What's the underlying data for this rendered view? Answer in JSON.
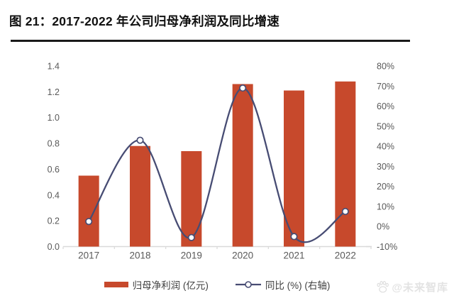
{
  "header": {
    "title": "图 21：2017-2022 年公司归母净利润及同比增速"
  },
  "chart_data": {
    "type": "bar",
    "subtype": "bar+line dual axis",
    "categories": [
      "2017",
      "2018",
      "2019",
      "2020",
      "2021",
      "2022"
    ],
    "series": [
      {
        "name": "归母净利润 (亿元)",
        "type": "bar",
        "axis": "left",
        "values": [
          0.55,
          0.78,
          0.74,
          1.26,
          1.21,
          1.28
        ]
      },
      {
        "name": "同比 (%) (右轴)",
        "type": "line",
        "axis": "right",
        "values": [
          2.5,
          43,
          -5.5,
          69,
          -5,
          7.5
        ]
      }
    ],
    "left_axis": {
      "min": 0.0,
      "max": 1.4,
      "step": 0.2,
      "tick_labels": [
        "0.0",
        "0.2",
        "0.4",
        "0.6",
        "0.8",
        "1.0",
        "1.2",
        "1.4"
      ]
    },
    "right_axis": {
      "min": -10,
      "max": 80,
      "step": 10,
      "tick_labels": [
        "-10%",
        "0%",
        "10%",
        "20%",
        "30%",
        "40%",
        "50%",
        "60%",
        "70%",
        "80%"
      ]
    },
    "grid": false,
    "legend_position": "bottom"
  },
  "legend": {
    "bar_label": "归母净利润 (亿元)",
    "line_label": "同比 (%) (右轴)"
  },
  "watermark": {
    "icon": "paw-icon",
    "text": "@未来智库"
  },
  "colors": {
    "bar": "#C7492C",
    "line": "#474C73",
    "axis_text": "#595959",
    "axis_line": "#D9D9D9",
    "title": "#111111",
    "legend_text": "#404040",
    "watermark": "#E3E3E3"
  }
}
